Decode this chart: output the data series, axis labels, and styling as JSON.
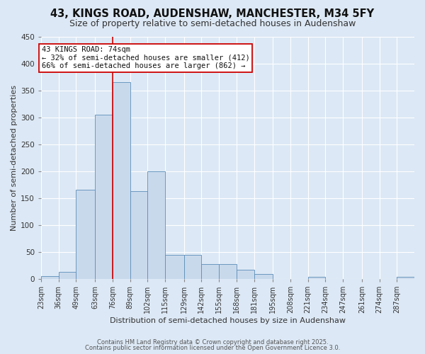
{
  "title": "43, KINGS ROAD, AUDENSHAW, MANCHESTER, M34 5FY",
  "subtitle": "Size of property relative to semi-detached houses in Audenshaw",
  "xlabel": "Distribution of semi-detached houses by size in Audenshaw",
  "ylabel": "Number of semi-detached properties",
  "bin_edges": [
    23,
    36,
    49,
    63,
    76,
    89,
    102,
    115,
    129,
    142,
    155,
    168,
    181,
    195,
    208,
    221,
    234,
    247,
    261,
    274,
    287
  ],
  "bar_heights": [
    5,
    13,
    165,
    304,
    365,
    162,
    199,
    44,
    44,
    27,
    27,
    17,
    9,
    0,
    0,
    3,
    0,
    0,
    0,
    0,
    3
  ],
  "bar_color": "#c9d9ec",
  "bar_edge_color": "#5b8db8",
  "background_color": "#dce8f5",
  "vline_x": 76,
  "vline_color": "#cc0000",
  "annotation_title": "43 KINGS ROAD: 74sqm",
  "annotation_line1": "← 32% of semi-detached houses are smaller (412)",
  "annotation_line2": "66% of semi-detached houses are larger (862) →",
  "annotation_box_color": "#ffffff",
  "annotation_border_color": "#cc0000",
  "footer_line1": "Contains HM Land Registry data © Crown copyright and database right 2025.",
  "footer_line2": "Contains public sector information licensed under the Open Government Licence 3.0.",
  "ylim": [
    0,
    450
  ],
  "title_fontsize": 10.5,
  "subtitle_fontsize": 9,
  "tick_label_size": 7,
  "annotation_fontsize": 7.5
}
